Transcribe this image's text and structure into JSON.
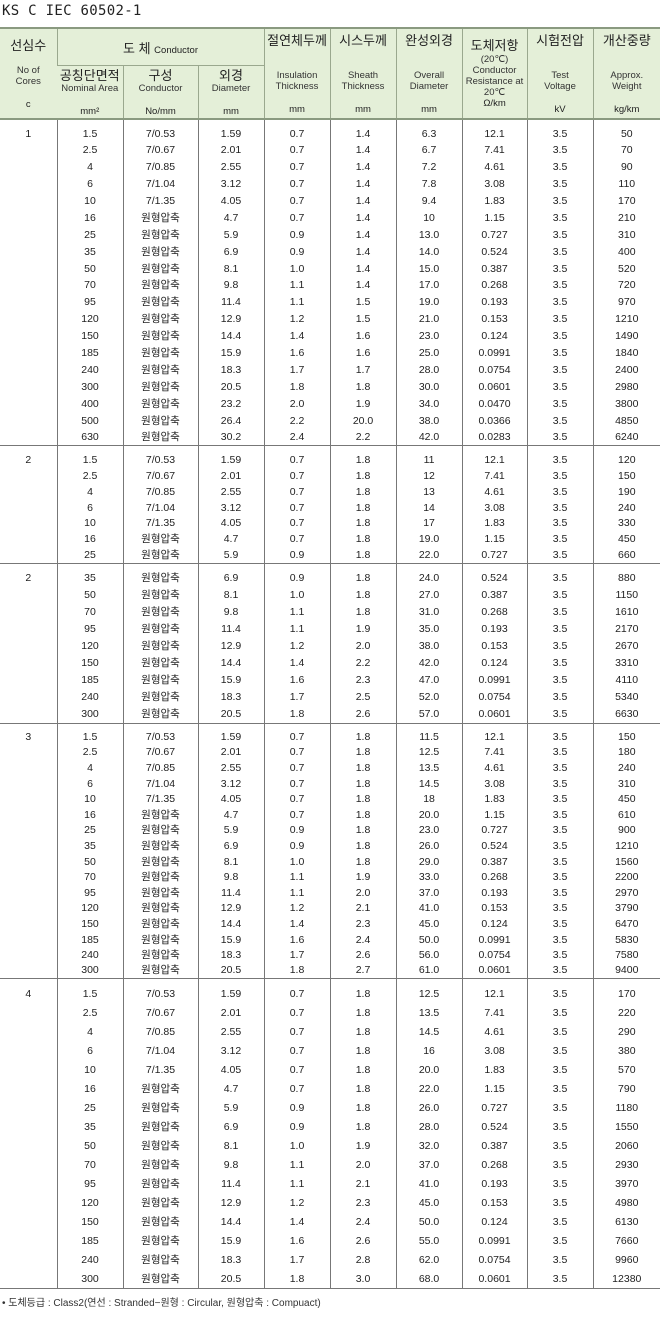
{
  "title": "KS C IEC 60502-1",
  "header": {
    "cores": {
      "ko": "선심수",
      "en": "No of Cores",
      "unit": "c"
    },
    "conductor": {
      "ko": "도  체",
      "en": "Conductor"
    },
    "area": {
      "ko": "공칭단면적",
      "en": "Nominal Area",
      "unit": "mm²"
    },
    "construction": {
      "ko": "구성",
      "en": "Conductor",
      "unit": "No/mm"
    },
    "diameter": {
      "ko": "외경",
      "en": "Diameter",
      "unit": "mm"
    },
    "insulation": {
      "ko": "절연체두께",
      "en": "Insulation Thickness",
      "unit": "mm"
    },
    "sheath": {
      "ko": "시스두께",
      "en": "Sheath Thickness",
      "unit": "mm"
    },
    "overall": {
      "ko": "완성외경",
      "en": "Overall Diameter",
      "unit": "mm"
    },
    "resistance": {
      "ko": "도체저항",
      "en": "(20℃) Conductor Resistance at 20℃",
      "unit": "Ω/km"
    },
    "voltage": {
      "ko": "시험전압",
      "en": "Test Voltage",
      "unit": "kV"
    },
    "weight": {
      "ko": "개산중량",
      "en": "Approx. Weight",
      "unit": "kg/km"
    }
  },
  "blocks": [
    {
      "cores": "1",
      "rows": [
        [
          "1.5",
          "7/0.53",
          "1.59",
          "0.7",
          "1.4",
          "6.3",
          "12.1",
          "3.5",
          "50"
        ],
        [
          "2.5",
          "7/0.67",
          "2.01",
          "0.7",
          "1.4",
          "6.7",
          "7.41",
          "3.5",
          "70"
        ],
        [
          "4",
          "7/0.85",
          "2.55",
          "0.7",
          "1.4",
          "7.2",
          "4.61",
          "3.5",
          "90"
        ],
        [
          "6",
          "7/1.04",
          "3.12",
          "0.7",
          "1.4",
          "7.8",
          "3.08",
          "3.5",
          "110"
        ],
        [
          "10",
          "7/1.35",
          "4.05",
          "0.7",
          "1.4",
          "9.4",
          "1.83",
          "3.5",
          "170"
        ],
        [
          "16",
          "원형압축",
          "4.7",
          "0.7",
          "1.4",
          "10",
          "1.15",
          "3.5",
          "210"
        ],
        [
          "25",
          "원형압축",
          "5.9",
          "0.9",
          "1.4",
          "13.0",
          "0.727",
          "3.5",
          "310"
        ],
        [
          "35",
          "원형압축",
          "6.9",
          "0.9",
          "1.4",
          "14.0",
          "0.524",
          "3.5",
          "400"
        ],
        [
          "50",
          "원형압축",
          "8.1",
          "1.0",
          "1.4",
          "15.0",
          "0.387",
          "3.5",
          "520"
        ],
        [
          "70",
          "원형압축",
          "9.8",
          "1.1",
          "1.4",
          "17.0",
          "0.268",
          "3.5",
          "720"
        ],
        [
          "95",
          "원형압축",
          "11.4",
          "1.1",
          "1.5",
          "19.0",
          "0.193",
          "3.5",
          "970"
        ],
        [
          "120",
          "원형압축",
          "12.9",
          "1.2",
          "1.5",
          "21.0",
          "0.153",
          "3.5",
          "1210"
        ],
        [
          "150",
          "원형압축",
          "14.4",
          "1.4",
          "1.6",
          "23.0",
          "0.124",
          "3.5",
          "1490"
        ],
        [
          "185",
          "원형압축",
          "15.9",
          "1.6",
          "1.6",
          "25.0",
          "0.0991",
          "3.5",
          "1840"
        ],
        [
          "240",
          "원형압축",
          "18.3",
          "1.7",
          "1.7",
          "28.0",
          "0.0754",
          "3.5",
          "2400"
        ],
        [
          "300",
          "원형압축",
          "20.5",
          "1.8",
          "1.8",
          "30.0",
          "0.0601",
          "3.5",
          "2980"
        ],
        [
          "400",
          "원형압축",
          "23.2",
          "2.0",
          "1.9",
          "34.0",
          "0.0470",
          "3.5",
          "3800"
        ],
        [
          "500",
          "원형압축",
          "26.4",
          "2.2",
          "20.0",
          "38.0",
          "0.0366",
          "3.5",
          "4850"
        ],
        [
          "630",
          "원형압축",
          "30.2",
          "2.4",
          "2.2",
          "42.0",
          "0.0283",
          "3.5",
          "6240"
        ]
      ]
    },
    {
      "cores": "2",
      "rows": [
        [
          "1.5",
          "7/0.53",
          "1.59",
          "0.7",
          "1.8",
          "11",
          "12.1",
          "3.5",
          "120"
        ],
        [
          "2.5",
          "7/0.67",
          "2.01",
          "0.7",
          "1.8",
          "12",
          "7.41",
          "3.5",
          "150"
        ],
        [
          "4",
          "7/0.85",
          "2.55",
          "0.7",
          "1.8",
          "13",
          "4.61",
          "3.5",
          "190"
        ],
        [
          "6",
          "7/1.04",
          "3.12",
          "0.7",
          "1.8",
          "14",
          "3.08",
          "3.5",
          "240"
        ],
        [
          "10",
          "7/1.35",
          "4.05",
          "0.7",
          "1.8",
          "17",
          "1.83",
          "3.5",
          "330"
        ],
        [
          "16",
          "원형압축",
          "4.7",
          "0.7",
          "1.8",
          "19.0",
          "1.15",
          "3.5",
          "450"
        ],
        [
          "25",
          "원형압축",
          "5.9",
          "0.9",
          "1.8",
          "22.0",
          "0.727",
          "3.5",
          "660"
        ]
      ]
    },
    {
      "cores": "2",
      "rows": [
        [
          "35",
          "원형압축",
          "6.9",
          "0.9",
          "1.8",
          "24.0",
          "0.524",
          "3.5",
          "880"
        ],
        [
          "50",
          "원형압축",
          "8.1",
          "1.0",
          "1.8",
          "27.0",
          "0.387",
          "3.5",
          "1150"
        ],
        [
          "70",
          "원형압축",
          "9.8",
          "1.1",
          "1.8",
          "31.0",
          "0.268",
          "3.5",
          "1610"
        ],
        [
          "95",
          "원형압축",
          "11.4",
          "1.1",
          "1.9",
          "35.0",
          "0.193",
          "3.5",
          "2170"
        ],
        [
          "120",
          "원형압축",
          "12.9",
          "1.2",
          "2.0",
          "38.0",
          "0.153",
          "3.5",
          "2670"
        ],
        [
          "150",
          "원형압축",
          "14.4",
          "1.4",
          "2.2",
          "42.0",
          "0.124",
          "3.5",
          "3310"
        ],
        [
          "185",
          "원형압축",
          "15.9",
          "1.6",
          "2.3",
          "47.0",
          "0.0991",
          "3.5",
          "4110"
        ],
        [
          "240",
          "원형압축",
          "18.3",
          "1.7",
          "2.5",
          "52.0",
          "0.0754",
          "3.5",
          "5340"
        ],
        [
          "300",
          "원형압축",
          "20.5",
          "1.8",
          "2.6",
          "57.0",
          "0.0601",
          "3.5",
          "6630"
        ]
      ]
    },
    {
      "cores": "3",
      "rows": [
        [
          "1.5",
          "7/0.53",
          "1.59",
          "0.7",
          "1.8",
          "11.5",
          "12.1",
          "3.5",
          "150"
        ],
        [
          "2.5",
          "7/0.67",
          "2.01",
          "0.7",
          "1.8",
          "12.5",
          "7.41",
          "3.5",
          "180"
        ],
        [
          "4",
          "7/0.85",
          "2.55",
          "0.7",
          "1.8",
          "13.5",
          "4.61",
          "3.5",
          "240"
        ],
        [
          "6",
          "7/1.04",
          "3.12",
          "0.7",
          "1.8",
          "14.5",
          "3.08",
          "3.5",
          "310"
        ],
        [
          "10",
          "7/1.35",
          "4.05",
          "0.7",
          "1.8",
          "18",
          "1.83",
          "3.5",
          "450"
        ],
        [
          "16",
          "원형압축",
          "4.7",
          "0.7",
          "1.8",
          "20.0",
          "1.15",
          "3.5",
          "610"
        ],
        [
          "25",
          "원형압축",
          "5.9",
          "0.9",
          "1.8",
          "23.0",
          "0.727",
          "3.5",
          "900"
        ],
        [
          "35",
          "원형압축",
          "6.9",
          "0.9",
          "1.8",
          "26.0",
          "0.524",
          "3.5",
          "1210"
        ],
        [
          "50",
          "원형압축",
          "8.1",
          "1.0",
          "1.8",
          "29.0",
          "0.387",
          "3.5",
          "1560"
        ],
        [
          "70",
          "원형압축",
          "9.8",
          "1.1",
          "1.9",
          "33.0",
          "0.268",
          "3.5",
          "2200"
        ],
        [
          "95",
          "원형압축",
          "11.4",
          "1.1",
          "2.0",
          "37.0",
          "0.193",
          "3.5",
          "2970"
        ],
        [
          "120",
          "원형압축",
          "12.9",
          "1.2",
          "2.1",
          "41.0",
          "0.153",
          "3.5",
          "3790"
        ],
        [
          "150",
          "원형압축",
          "14.4",
          "1.4",
          "2.3",
          "45.0",
          "0.124",
          "3.5",
          "6470"
        ],
        [
          "185",
          "원형압축",
          "15.9",
          "1.6",
          "2.4",
          "50.0",
          "0.0991",
          "3.5",
          "5830"
        ],
        [
          "240",
          "원형압축",
          "18.3",
          "1.7",
          "2.6",
          "56.0",
          "0.0754",
          "3.5",
          "7580"
        ],
        [
          "300",
          "원형압축",
          "20.5",
          "1.8",
          "2.7",
          "61.0",
          "0.0601",
          "3.5",
          "9400"
        ]
      ]
    },
    {
      "cores": "4",
      "rows": [
        [
          "1.5",
          "7/0.53",
          "1.59",
          "0.7",
          "1.8",
          "12.5",
          "12.1",
          "3.5",
          "170"
        ],
        [
          "2.5",
          "7/0.67",
          "2.01",
          "0.7",
          "1.8",
          "13.5",
          "7.41",
          "3.5",
          "220"
        ],
        [
          "4",
          "7/0.85",
          "2.55",
          "0.7",
          "1.8",
          "14.5",
          "4.61",
          "3.5",
          "290"
        ],
        [
          "6",
          "7/1.04",
          "3.12",
          "0.7",
          "1.8",
          "16",
          "3.08",
          "3.5",
          "380"
        ],
        [
          "10",
          "7/1.35",
          "4.05",
          "0.7",
          "1.8",
          "20.0",
          "1.83",
          "3.5",
          "570"
        ],
        [
          "16",
          "원형압축",
          "4.7",
          "0.7",
          "1.8",
          "22.0",
          "1.15",
          "3.5",
          "790"
        ],
        [
          "25",
          "원형압축",
          "5.9",
          "0.9",
          "1.8",
          "26.0",
          "0.727",
          "3.5",
          "1180"
        ],
        [
          "35",
          "원형압축",
          "6.9",
          "0.9",
          "1.8",
          "28.0",
          "0.524",
          "3.5",
          "1550"
        ],
        [
          "50",
          "원형압축",
          "8.1",
          "1.0",
          "1.9",
          "32.0",
          "0.387",
          "3.5",
          "2060"
        ],
        [
          "70",
          "원형압축",
          "9.8",
          "1.1",
          "2.0",
          "37.0",
          "0.268",
          "3.5",
          "2930"
        ],
        [
          "95",
          "원형압축",
          "11.4",
          "1.1",
          "2.1",
          "41.0",
          "0.193",
          "3.5",
          "3970"
        ],
        [
          "120",
          "원형압축",
          "12.9",
          "1.2",
          "2.3",
          "45.0",
          "0.153",
          "3.5",
          "4980"
        ],
        [
          "150",
          "원형압축",
          "14.4",
          "1.4",
          "2.4",
          "50.0",
          "0.124",
          "3.5",
          "6130"
        ],
        [
          "185",
          "원형압축",
          "15.9",
          "1.6",
          "2.6",
          "55.0",
          "0.0991",
          "3.5",
          "7660"
        ],
        [
          "240",
          "원형압축",
          "18.3",
          "1.7",
          "2.8",
          "62.0",
          "0.0754",
          "3.5",
          "9960"
        ],
        [
          "300",
          "원형압축",
          "20.5",
          "1.8",
          "3.0",
          "68.0",
          "0.0601",
          "3.5",
          "12380"
        ]
      ]
    }
  ],
  "footer": "• 도체등급 : Class2(연선 : Stranded−원형 : Circular, 원형압축 : Compuact)"
}
